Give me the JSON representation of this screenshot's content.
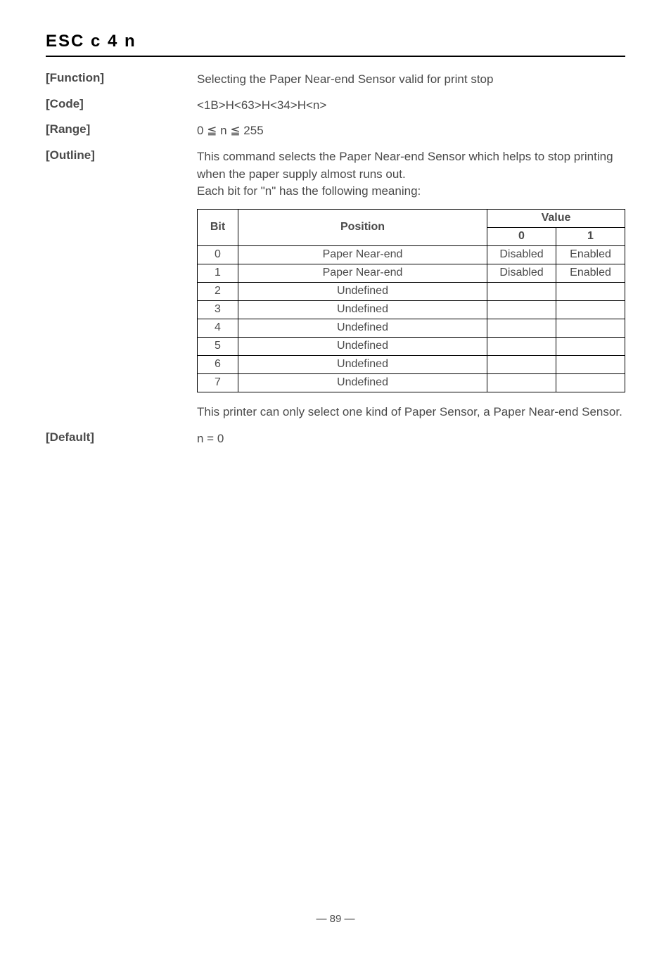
{
  "command_title": "ESC   c 4   n",
  "sections": {
    "function": {
      "label": "[Function]",
      "text": "Selecting the Paper Near-end Sensor valid for print stop"
    },
    "code": {
      "label": "[Code]",
      "text": "<1B>H<63>H<34>H<n>"
    },
    "range": {
      "label": "[Range]",
      "text": "0 ≦ n ≦ 255"
    },
    "outline": {
      "label": "[Outline]",
      "text": "This command selects the Paper Near-end Sensor which helps to stop  printing when the paper supply almost runs out.",
      "subtext": "Each bit for \"n\" has the following meaning:"
    },
    "default_section": {
      "label": "[Default]",
      "text": "n = 0"
    }
  },
  "table": {
    "headers": {
      "bit": "Bit",
      "position": "Position",
      "value": "Value",
      "value_0": "0",
      "value_1": "1"
    },
    "rows": [
      {
        "bit": "0",
        "position": "Paper Near-end",
        "val0": "Disabled",
        "val1": "Enabled"
      },
      {
        "bit": "1",
        "position": "Paper Near-end",
        "val0": "Disabled",
        "val1": "Enabled"
      },
      {
        "bit": "2",
        "position": "Undefined",
        "val0": "",
        "val1": ""
      },
      {
        "bit": "3",
        "position": "Undefined",
        "val0": "",
        "val1": ""
      },
      {
        "bit": "4",
        "position": "Undefined",
        "val0": "",
        "val1": ""
      },
      {
        "bit": "5",
        "position": "Undefined",
        "val0": "",
        "val1": ""
      },
      {
        "bit": "6",
        "position": "Undefined",
        "val0": "",
        "val1": ""
      },
      {
        "bit": "7",
        "position": "Undefined",
        "val0": "",
        "val1": ""
      }
    ]
  },
  "note": "This printer can only select one kind of Paper Sensor, a Paper Near-end Sensor.",
  "page_number": "— 89 —"
}
